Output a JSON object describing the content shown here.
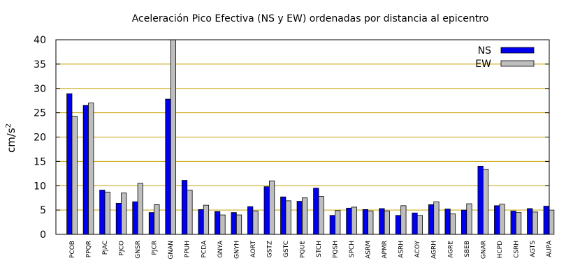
{
  "chart_data": {
    "type": "bar",
    "title": "Aceleración Pico Efectiva (NS y EW) ordenadas por distancia al epicentro",
    "xlabel": "",
    "ylabel": "cm/s",
    "ylabel_sup": "2",
    "ylim": [
      0,
      40
    ],
    "yticks": [
      0,
      5,
      10,
      15,
      20,
      25,
      30,
      35,
      40
    ],
    "grid": true,
    "legend_position": "top-right",
    "categories": [
      "PCOB",
      "PPQR",
      "PJAC",
      "PJCO",
      "GNSR",
      "PJCR",
      "GNAN",
      "PPUH",
      "PCDA",
      "GNYA",
      "GNYH",
      "AORT",
      "GSTZ",
      "GSTC",
      "PQUE",
      "STCH",
      "PQSH",
      "SPCH",
      "ASRM",
      "APMR",
      "ASRH",
      "ACOY",
      "AGRH",
      "AGRE",
      "SBEB",
      "GNAR",
      "HCPD",
      "CSRH",
      "AGTS",
      "AUPA"
    ],
    "series": [
      {
        "name": "NS",
        "color": "#0000ee",
        "values": [
          28.9,
          26.5,
          9.1,
          6.4,
          6.7,
          4.5,
          27.8,
          11.1,
          5.1,
          4.7,
          4.5,
          5.7,
          9.8,
          7.7,
          6.8,
          9.5,
          3.9,
          5.4,
          5.1,
          5.3,
          3.9,
          4.4,
          6.1,
          5.2,
          5.0,
          14.0,
          5.9,
          4.8,
          5.3,
          5.8
        ]
      },
      {
        "name": "EW",
        "color": "#bebebe",
        "values": [
          24.3,
          27.0,
          8.7,
          8.5,
          10.5,
          6.1,
          40.0,
          9.1,
          6.0,
          4.0,
          4.0,
          4.8,
          11.0,
          6.9,
          7.5,
          7.8,
          4.9,
          5.6,
          4.8,
          4.8,
          5.9,
          3.9,
          6.7,
          4.2,
          6.3,
          13.4,
          6.2,
          4.5,
          4.6,
          5.0
        ]
      }
    ]
  }
}
